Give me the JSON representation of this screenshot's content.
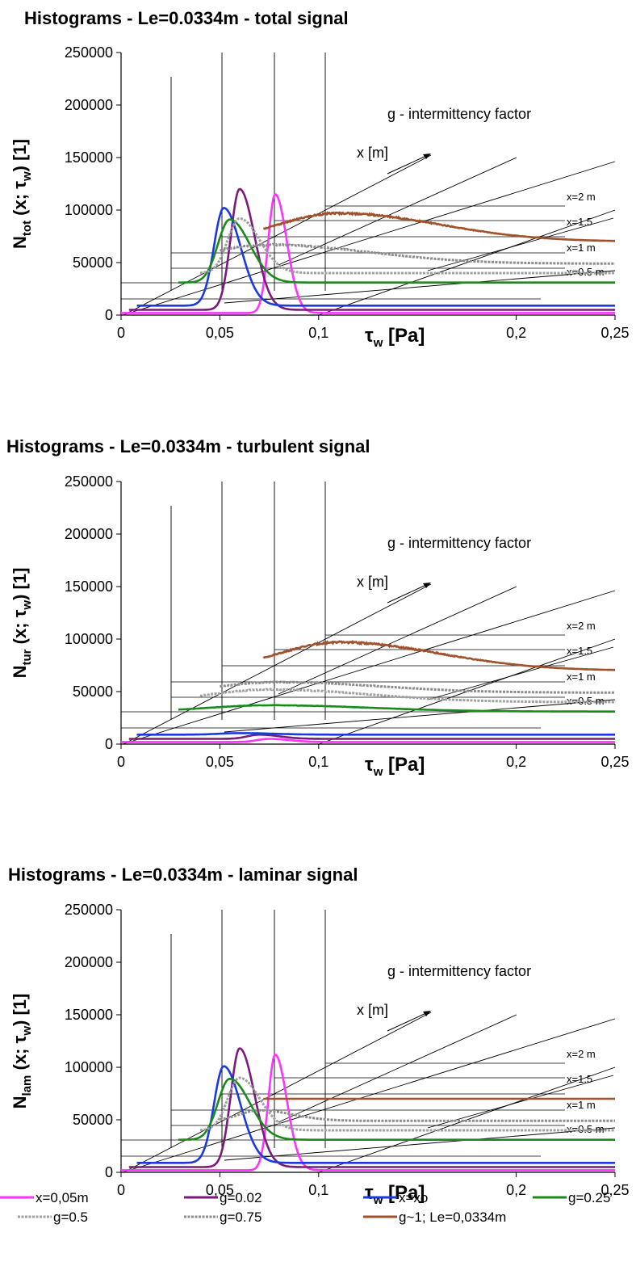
{
  "chart_data": [
    {
      "type": "line",
      "title": "Histograms  - Le=0.0334m - total signal",
      "ylabel_main": "N",
      "ylabel_sub": "tot",
      "ylabel_rest": " (x; τ",
      "ylabel_rest_sub": "w",
      "ylabel_end": ") [1]",
      "xlabel_main": "τ",
      "xlabel_sub": "w",
      "xlabel_end": " [Pa]",
      "xlim": [
        0,
        0.25
      ],
      "ylim": [
        0,
        250000
      ],
      "xticks": [
        0,
        0.05,
        0.1,
        0.2,
        0.25
      ],
      "xtick_labels": [
        "0",
        "0,05",
        "0,1",
        "0,2",
        "0,25"
      ],
      "yticks": [
        0,
        50000,
        100000,
        150000,
        200000,
        250000
      ],
      "ytick_labels": [
        "0",
        "50000",
        "100000",
        "150000",
        "200000",
        "250000"
      ],
      "annotation": "g - intermittency factor",
      "depth_axis_label": "x [m]",
      "row_labels": [
        "x=2 m",
        "x=1.5",
        "x=1 m",
        "x=0.5 m"
      ],
      "series": [
        {
          "key": "s1",
          "color": "#ff33ff",
          "offset": [
            0,
            2000
          ],
          "peaks": [
            {
              "c": 0.078,
              "h": 113000,
              "w": 0.0035
            }
          ]
        },
        {
          "key": "s2",
          "color": "#7a1a7a",
          "offset": [
            0.004,
            5000
          ],
          "peaks": [
            {
              "c": 0.06,
              "h": 115000,
              "w": 0.0045
            }
          ]
        },
        {
          "key": "s3",
          "color": "#1a3adf",
          "offset": [
            0.008,
            9000
          ],
          "peaks": [
            {
              "c": 0.052,
              "h": 93000,
              "w": 0.005
            }
          ]
        },
        {
          "key": "s4",
          "color": "#1a8a1a",
          "offset": [
            0.029,
            31000
          ],
          "peaks": [
            {
              "c": 0.055,
              "h": 60000,
              "w": 0.006
            }
          ]
        },
        {
          "key": "s5",
          "color": "#a0a0a0",
          "offset": [
            0.04,
            40000
          ],
          "peaks": [
            {
              "c": 0.06,
              "h": 52000,
              "w": 0.006
            }
          ]
        },
        {
          "key": "s6",
          "color": "#8c8c8c",
          "offset": [
            0.05,
            49000
          ],
          "peaks": [
            {
              "c": 0.075,
              "h": 18000,
              "w": 0.03
            }
          ]
        },
        {
          "key": "s7",
          "color": "#a0522d",
          "offset": [
            0.072,
            70000
          ],
          "peaks": [
            {
              "c": 0.11,
              "h": 27000,
              "w": 0.03
            }
          ]
        }
      ]
    },
    {
      "type": "line",
      "title": "Histograms  - Le=0.0334m - turbulent signal",
      "ylabel_main": "N",
      "ylabel_sub": "tur",
      "ylabel_rest": " (x; τ",
      "ylabel_rest_sub": "w",
      "ylabel_end": ") [1]",
      "xlabel_main": "τ",
      "xlabel_sub": "w",
      "xlabel_end": " [Pa]",
      "xlim": [
        0,
        0.25
      ],
      "ylim": [
        0,
        250000
      ],
      "xticks": [
        0,
        0.05,
        0.1,
        0.2,
        0.25
      ],
      "xtick_labels": [
        "0",
        "0,05",
        "0,1",
        "0,2",
        "0,25"
      ],
      "yticks": [
        0,
        50000,
        100000,
        150000,
        200000,
        250000
      ],
      "ytick_labels": [
        "0",
        "50000",
        "100000",
        "150000",
        "200000",
        "250000"
      ],
      "annotation": "g - intermittency factor",
      "depth_axis_label": "x [m]",
      "row_labels": [
        "x=2 m",
        "x=1.5",
        "x=1 m",
        "x=0.5 m"
      ],
      "series": [
        {
          "key": "s1",
          "color": "#ff33ff",
          "offset": [
            0,
            2000
          ],
          "peaks": [
            {
              "c": 0.075,
              "h": 3000,
              "w": 0.006
            }
          ]
        },
        {
          "key": "s2",
          "color": "#7a1a7a",
          "offset": [
            0.004,
            5000
          ],
          "peaks": [
            {
              "c": 0.07,
              "h": 4000,
              "w": 0.006
            }
          ]
        },
        {
          "key": "s3",
          "color": "#1a3adf",
          "offset": [
            0.008,
            9000
          ],
          "peaks": [
            {
              "c": 0.06,
              "h": 1500,
              "w": 0.01
            }
          ]
        },
        {
          "key": "s4",
          "color": "#1a8a1a",
          "offset": [
            0.029,
            31000
          ],
          "peaks": [
            {
              "c": 0.075,
              "h": 6000,
              "w": 0.03
            }
          ]
        },
        {
          "key": "s5",
          "color": "#a0a0a0",
          "offset": [
            0.04,
            40000
          ],
          "peaks": [
            {
              "c": 0.075,
              "h": 12000,
              "w": 0.03
            }
          ]
        },
        {
          "key": "s6",
          "color": "#8c8c8c",
          "offset": [
            0.05,
            49000
          ],
          "peaks": [
            {
              "c": 0.08,
              "h": 10000,
              "w": 0.03
            }
          ]
        },
        {
          "key": "s7",
          "color": "#a0522d",
          "offset": [
            0.072,
            70000
          ],
          "peaks": [
            {
              "c": 0.11,
              "h": 27000,
              "w": 0.03
            }
          ]
        }
      ]
    },
    {
      "type": "line",
      "title": "Histograms  - Le=0.0334m - laminar signal",
      "ylabel_main": "N",
      "ylabel_sub": "lam",
      "ylabel_rest": " (x; τ",
      "ylabel_rest_sub": "w",
      "ylabel_end": ") [1]",
      "xlabel_main": "τ",
      "xlabel_sub": "w",
      "xlabel_end": " [Pa]",
      "xlim": [
        0,
        0.25
      ],
      "ylim": [
        0,
        250000
      ],
      "xticks": [
        0,
        0.05,
        0.1,
        0.2,
        0.25
      ],
      "xtick_labels": [
        "0",
        "0,05",
        "0,1",
        "0,2",
        "0,25"
      ],
      "yticks": [
        0,
        50000,
        100000,
        150000,
        200000,
        250000
      ],
      "ytick_labels": [
        "0",
        "50000",
        "100000",
        "150000",
        "200000",
        "250000"
      ],
      "annotation": "g - intermittency factor",
      "depth_axis_label": "x [m]",
      "row_labels": [
        "x=2 m",
        "x=1.5",
        "x=1 m",
        "x=0.5 m"
      ],
      "series": [
        {
          "key": "s1",
          "color": "#ff33ff",
          "offset": [
            0,
            2000
          ],
          "peaks": [
            {
              "c": 0.078,
              "h": 110000,
              "w": 0.0035
            }
          ]
        },
        {
          "key": "s2",
          "color": "#7a1a7a",
          "offset": [
            0.004,
            5000
          ],
          "peaks": [
            {
              "c": 0.06,
              "h": 113000,
              "w": 0.0045
            }
          ]
        },
        {
          "key": "s3",
          "color": "#1a3adf",
          "offset": [
            0.008,
            9000
          ],
          "peaks": [
            {
              "c": 0.052,
              "h": 92000,
              "w": 0.005
            }
          ]
        },
        {
          "key": "s4",
          "color": "#1a8a1a",
          "offset": [
            0.029,
            31000
          ],
          "peaks": [
            {
              "c": 0.055,
              "h": 58000,
              "w": 0.006
            }
          ]
        },
        {
          "key": "s5",
          "color": "#a0a0a0",
          "offset": [
            0.04,
            40000
          ],
          "peaks": [
            {
              "c": 0.06,
              "h": 50000,
              "w": 0.006
            }
          ]
        },
        {
          "key": "s6",
          "color": "#8c8c8c",
          "offset": [
            0.05,
            49000
          ],
          "peaks": [
            {
              "c": 0.07,
              "h": 10000,
              "w": 0.01
            }
          ]
        },
        {
          "key": "s7",
          "color": "#a0522d",
          "offset": [
            0.072,
            70000
          ],
          "peaks": []
        }
      ]
    }
  ],
  "legend": [
    {
      "key": "s1",
      "label": "x=0,05m",
      "color": "#ff33ff"
    },
    {
      "key": "s2",
      "label": "g=0.02",
      "color": "#7a1a7a"
    },
    {
      "key": "s3",
      "label": "x=xo",
      "color": "#1a3adf"
    },
    {
      "key": "s4",
      "label": "g=0.25",
      "color": "#1a8a1a"
    },
    {
      "key": "s5",
      "label": "g=0.5",
      "color": "#a0a0a0"
    },
    {
      "key": "s6",
      "label": "g=0.75",
      "color": "#8c8c8c"
    },
    {
      "key": "s7",
      "label": "g~1; Le=0,0334m",
      "color": "#a0522d"
    }
  ]
}
